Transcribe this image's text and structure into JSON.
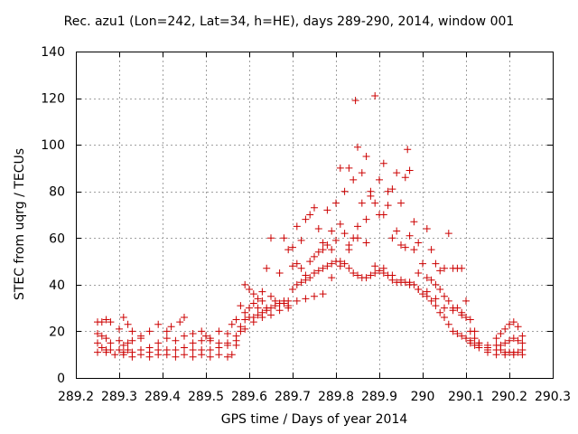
{
  "chart_data": {
    "type": "scatter",
    "title": "Rec. azu1 (Lon=242, Lat=34, h=HE), days 289-290, 2014, window 001",
    "xlabel": "GPS time / Days of year 2014",
    "ylabel": "STEC from uqrg / TECUs",
    "xlim": [
      289.2,
      290.3
    ],
    "ylim": [
      0,
      140
    ],
    "x_ticks": [
      "289.2",
      "289.3",
      "289.4",
      "289.5",
      "289.6",
      "289.7",
      "289.8",
      "289.9",
      "290",
      "290.1",
      "290.2",
      "290.3"
    ],
    "y_ticks": [
      "0",
      "20",
      "40",
      "60",
      "80",
      "100",
      "120",
      "140"
    ],
    "grid": true,
    "legend": "none",
    "marker": "plus",
    "color": "#cc0000",
    "series": [
      {
        "points": [
          [
            289.25,
            24
          ],
          [
            289.26,
            24
          ],
          [
            289.27,
            25
          ],
          [
            289.28,
            24
          ],
          [
            289.3,
            21
          ],
          [
            289.31,
            26
          ],
          [
            289.32,
            23
          ],
          [
            289.33,
            20
          ],
          [
            289.35,
            18
          ],
          [
            289.37,
            20
          ],
          [
            289.39,
            23
          ],
          [
            289.41,
            20
          ],
          [
            289.42,
            22
          ],
          [
            289.44,
            24
          ],
          [
            289.45,
            26
          ],
          [
            289.47,
            19
          ],
          [
            289.49,
            20
          ],
          [
            289.5,
            18
          ],
          [
            289.51,
            16
          ],
          [
            289.53,
            20
          ],
          [
            289.55,
            19
          ],
          [
            289.56,
            23
          ],
          [
            289.57,
            25
          ],
          [
            289.58,
            31
          ],
          [
            289.59,
            40
          ],
          [
            289.6,
            38
          ],
          [
            289.61,
            36
          ],
          [
            289.62,
            34
          ],
          [
            289.63,
            37
          ],
          [
            289.64,
            47
          ],
          [
            289.65,
            60
          ],
          [
            289.67,
            45
          ],
          [
            289.68,
            60
          ],
          [
            289.69,
            55
          ],
          [
            289.7,
            56
          ],
          [
            289.71,
            65
          ],
          [
            289.72,
            59
          ],
          [
            289.73,
            68
          ],
          [
            289.74,
            70
          ],
          [
            289.75,
            73
          ],
          [
            289.76,
            64
          ],
          [
            289.77,
            58
          ],
          [
            289.78,
            72
          ],
          [
            289.79,
            63
          ],
          [
            289.8,
            75
          ],
          [
            289.81,
            90
          ],
          [
            289.82,
            80
          ],
          [
            289.83,
            90
          ],
          [
            289.84,
            85
          ],
          [
            289.845,
            119
          ],
          [
            289.85,
            99
          ],
          [
            289.86,
            88
          ],
          [
            289.87,
            95
          ],
          [
            289.88,
            80
          ],
          [
            289.89,
            121
          ],
          [
            289.9,
            85
          ],
          [
            289.91,
            92
          ],
          [
            289.92,
            80
          ],
          [
            289.93,
            81
          ],
          [
            289.94,
            88
          ],
          [
            289.95,
            75
          ],
          [
            289.96,
            86
          ],
          [
            289.965,
            98
          ],
          [
            289.97,
            89
          ],
          [
            289.98,
            67
          ],
          [
            289.99,
            58
          ],
          [
            290.01,
            64
          ],
          [
            290.02,
            55
          ],
          [
            290.03,
            49
          ],
          [
            290.04,
            46
          ],
          [
            290.05,
            47
          ],
          [
            290.06,
            62
          ],
          [
            290.07,
            47
          ],
          [
            290.08,
            47
          ],
          [
            290.09,
            47
          ],
          [
            290.1,
            33
          ],
          [
            290.11,
            25
          ],
          [
            290.12,
            20
          ],
          [
            290.13,
            15
          ],
          [
            290.15,
            14
          ],
          [
            290.17,
            17
          ],
          [
            290.18,
            19
          ],
          [
            290.19,
            21
          ],
          [
            290.2,
            23
          ],
          [
            290.21,
            24
          ],
          [
            290.22,
            22
          ],
          [
            290.23,
            18
          ],
          [
            289.25,
            19
          ],
          [
            289.26,
            18
          ],
          [
            289.27,
            17
          ],
          [
            289.28,
            15
          ],
          [
            289.3,
            16
          ],
          [
            289.31,
            14
          ],
          [
            289.32,
            15
          ],
          [
            289.33,
            16
          ],
          [
            289.35,
            17
          ],
          [
            289.37,
            13
          ],
          [
            289.39,
            15
          ],
          [
            289.41,
            17
          ],
          [
            289.43,
            16
          ],
          [
            289.45,
            18
          ],
          [
            289.47,
            15
          ],
          [
            289.49,
            16
          ],
          [
            289.51,
            17
          ],
          [
            289.53,
            15
          ],
          [
            289.55,
            15
          ],
          [
            289.57,
            18
          ],
          [
            289.58,
            22
          ],
          [
            289.59,
            28
          ],
          [
            289.6,
            30
          ],
          [
            289.61,
            32
          ],
          [
            289.62,
            30
          ],
          [
            289.63,
            33
          ],
          [
            289.64,
            30
          ],
          [
            289.65,
            35
          ],
          [
            289.66,
            33
          ],
          [
            289.67,
            32
          ],
          [
            289.68,
            33
          ],
          [
            289.69,
            33
          ],
          [
            289.7,
            48
          ],
          [
            289.71,
            49
          ],
          [
            289.72,
            47
          ],
          [
            289.73,
            44
          ],
          [
            289.74,
            50
          ],
          [
            289.75,
            52
          ],
          [
            289.76,
            54
          ],
          [
            289.77,
            55
          ],
          [
            289.78,
            57
          ],
          [
            289.79,
            55
          ],
          [
            289.8,
            59
          ],
          [
            289.81,
            66
          ],
          [
            289.82,
            62
          ],
          [
            289.83,
            57
          ],
          [
            289.84,
            60
          ],
          [
            289.85,
            65
          ],
          [
            289.86,
            75
          ],
          [
            289.87,
            68
          ],
          [
            289.88,
            78
          ],
          [
            289.89,
            75
          ],
          [
            289.9,
            70
          ],
          [
            289.91,
            70
          ],
          [
            289.92,
            74
          ],
          [
            289.93,
            60
          ],
          [
            289.94,
            63
          ],
          [
            289.95,
            57
          ],
          [
            289.96,
            56
          ],
          [
            289.97,
            61
          ],
          [
            289.98,
            55
          ],
          [
            289.99,
            45
          ],
          [
            290.0,
            49
          ],
          [
            290.01,
            43
          ],
          [
            290.02,
            42
          ],
          [
            290.03,
            40
          ],
          [
            290.04,
            38
          ],
          [
            290.05,
            35
          ],
          [
            290.06,
            33
          ],
          [
            290.07,
            30
          ],
          [
            290.08,
            30
          ],
          [
            290.09,
            28
          ],
          [
            290.1,
            26
          ],
          [
            290.11,
            20
          ],
          [
            290.12,
            17
          ],
          [
            290.13,
            15
          ],
          [
            290.15,
            13
          ],
          [
            290.17,
            14
          ],
          [
            290.18,
            14
          ],
          [
            290.19,
            15
          ],
          [
            290.2,
            16
          ],
          [
            290.21,
            17
          ],
          [
            290.22,
            16
          ],
          [
            290.23,
            15
          ],
          [
            289.25,
            15
          ],
          [
            289.26,
            13
          ],
          [
            289.27,
            12
          ],
          [
            289.28,
            12
          ],
          [
            289.3,
            12
          ],
          [
            289.31,
            11
          ],
          [
            289.32,
            12
          ],
          [
            289.33,
            11
          ],
          [
            289.35,
            12
          ],
          [
            289.37,
            11
          ],
          [
            289.39,
            12
          ],
          [
            289.41,
            12
          ],
          [
            289.43,
            12
          ],
          [
            289.45,
            13
          ],
          [
            289.47,
            12
          ],
          [
            289.49,
            12
          ],
          [
            289.51,
            12
          ],
          [
            289.53,
            13
          ],
          [
            289.55,
            14
          ],
          [
            289.57,
            16
          ],
          [
            289.58,
            20
          ],
          [
            289.59,
            25
          ],
          [
            289.6,
            26
          ],
          [
            289.61,
            26
          ],
          [
            289.62,
            27
          ],
          [
            289.63,
            28
          ],
          [
            289.64,
            29
          ],
          [
            289.65,
            30
          ],
          [
            289.66,
            31
          ],
          [
            289.67,
            32
          ],
          [
            289.68,
            32
          ],
          [
            289.69,
            31
          ],
          [
            289.7,
            38
          ],
          [
            289.71,
            40
          ],
          [
            289.72,
            41
          ],
          [
            289.73,
            42
          ],
          [
            289.74,
            43
          ],
          [
            289.75,
            45
          ],
          [
            289.76,
            46
          ],
          [
            289.77,
            47
          ],
          [
            289.78,
            48
          ],
          [
            289.79,
            49
          ],
          [
            289.8,
            50
          ],
          [
            289.81,
            50
          ],
          [
            289.82,
            49
          ],
          [
            289.83,
            47
          ],
          [
            289.84,
            45
          ],
          [
            289.85,
            44
          ],
          [
            289.86,
            43
          ],
          [
            289.87,
            43
          ],
          [
            289.88,
            44
          ],
          [
            289.89,
            45
          ],
          [
            289.9,
            46
          ],
          [
            289.91,
            45
          ],
          [
            289.92,
            44
          ],
          [
            289.93,
            42
          ],
          [
            289.94,
            41
          ],
          [
            289.95,
            41
          ],
          [
            289.96,
            41
          ],
          [
            289.97,
            41
          ],
          [
            289.98,
            40
          ],
          [
            289.99,
            38
          ],
          [
            290.0,
            36
          ],
          [
            290.01,
            35
          ],
          [
            290.02,
            33
          ],
          [
            290.03,
            31
          ],
          [
            290.04,
            28
          ],
          [
            290.05,
            26
          ],
          [
            290.06,
            23
          ],
          [
            290.07,
            20
          ],
          [
            290.08,
            19
          ],
          [
            290.09,
            18
          ],
          [
            290.1,
            17
          ],
          [
            290.11,
            15
          ],
          [
            290.12,
            14
          ],
          [
            290.13,
            13
          ],
          [
            290.15,
            12
          ],
          [
            290.17,
            12
          ],
          [
            290.18,
            12
          ],
          [
            290.19,
            11
          ],
          [
            290.2,
            11
          ],
          [
            290.21,
            11
          ],
          [
            290.22,
            11
          ],
          [
            290.23,
            12
          ],
          [
            289.25,
            11
          ],
          [
            289.27,
            11
          ],
          [
            289.29,
            10
          ],
          [
            289.31,
            10
          ],
          [
            289.33,
            9
          ],
          [
            289.35,
            10
          ],
          [
            289.37,
            9
          ],
          [
            289.39,
            10
          ],
          [
            289.41,
            10
          ],
          [
            289.43,
            9
          ],
          [
            289.45,
            10
          ],
          [
            289.47,
            9
          ],
          [
            289.49,
            10
          ],
          [
            289.51,
            9
          ],
          [
            289.53,
            10
          ],
          [
            289.55,
            9
          ],
          [
            289.56,
            10
          ],
          [
            289.57,
            14
          ],
          [
            289.59,
            21
          ],
          [
            289.61,
            24
          ],
          [
            289.63,
            26
          ],
          [
            289.65,
            27
          ],
          [
            289.67,
            29
          ],
          [
            289.69,
            30
          ],
          [
            289.71,
            33
          ],
          [
            289.73,
            34
          ],
          [
            289.75,
            35
          ],
          [
            289.77,
            36
          ],
          [
            289.79,
            43
          ],
          [
            289.81,
            48
          ],
          [
            289.83,
            55
          ],
          [
            289.85,
            60
          ],
          [
            289.87,
            58
          ],
          [
            289.89,
            48
          ],
          [
            289.91,
            47
          ],
          [
            289.93,
            44
          ],
          [
            289.95,
            42
          ],
          [
            289.97,
            40
          ],
          [
            289.99,
            38
          ],
          [
            290.01,
            37
          ],
          [
            290.03,
            34
          ],
          [
            290.05,
            30
          ],
          [
            290.07,
            29
          ],
          [
            290.09,
            27
          ],
          [
            290.11,
            16
          ],
          [
            290.13,
            14
          ],
          [
            290.15,
            11
          ],
          [
            290.17,
            10
          ],
          [
            290.19,
            10
          ],
          [
            290.21,
            10
          ],
          [
            290.23,
            10
          ]
        ]
      }
    ]
  }
}
